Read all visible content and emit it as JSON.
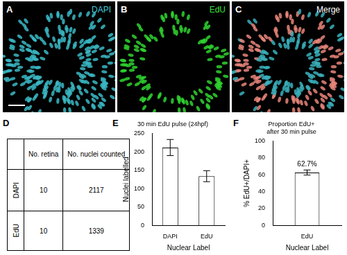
{
  "image_panels": [
    {
      "letter": "A",
      "label": "DAPI"
    },
    {
      "letter": "B",
      "label": "EdU"
    },
    {
      "letter": "C",
      "label": "Merge"
    }
  ],
  "table": {
    "letter": "D",
    "header": [
      "No. retina",
      "No. nuclei counted"
    ],
    "rows": [
      {
        "label": "DAPI",
        "values": [
          10,
          2117
        ]
      },
      {
        "label": "EdU",
        "values": [
          10,
          1339
        ]
      }
    ]
  },
  "chart_data": [
    {
      "panel_label": "E",
      "type": "bar",
      "title": "30 min EdU pulse (24hpf)",
      "x_label": "Nuclear Label",
      "y_label": "Nuclei labelled",
      "categories": [
        "DAPI",
        "EdU"
      ],
      "values": [
        212,
        134
      ],
      "errors": [
        22,
        15
      ],
      "color": "#ffffff",
      "ylim": [
        0,
        250
      ],
      "yticks": [
        0,
        50,
        100,
        150,
        200,
        250
      ],
      "grid": false
    },
    {
      "panel_label": "F",
      "type": "bar",
      "title": [
        "Proportion EdU+",
        "after 30 min pulse"
      ],
      "x_label": "Nuclear Label",
      "y_label": "% EdU+/DAPI+",
      "categories": [
        "EdU"
      ],
      "values": [
        62.7
      ],
      "value_labels": [
        "62.7%"
      ],
      "errors": [
        3
      ],
      "data_labels": true,
      "color": "#ffffff",
      "ylim": [
        0,
        100
      ],
      "yticks": [
        0,
        20,
        40,
        60,
        80,
        100
      ],
      "grid": false
    }
  ]
}
